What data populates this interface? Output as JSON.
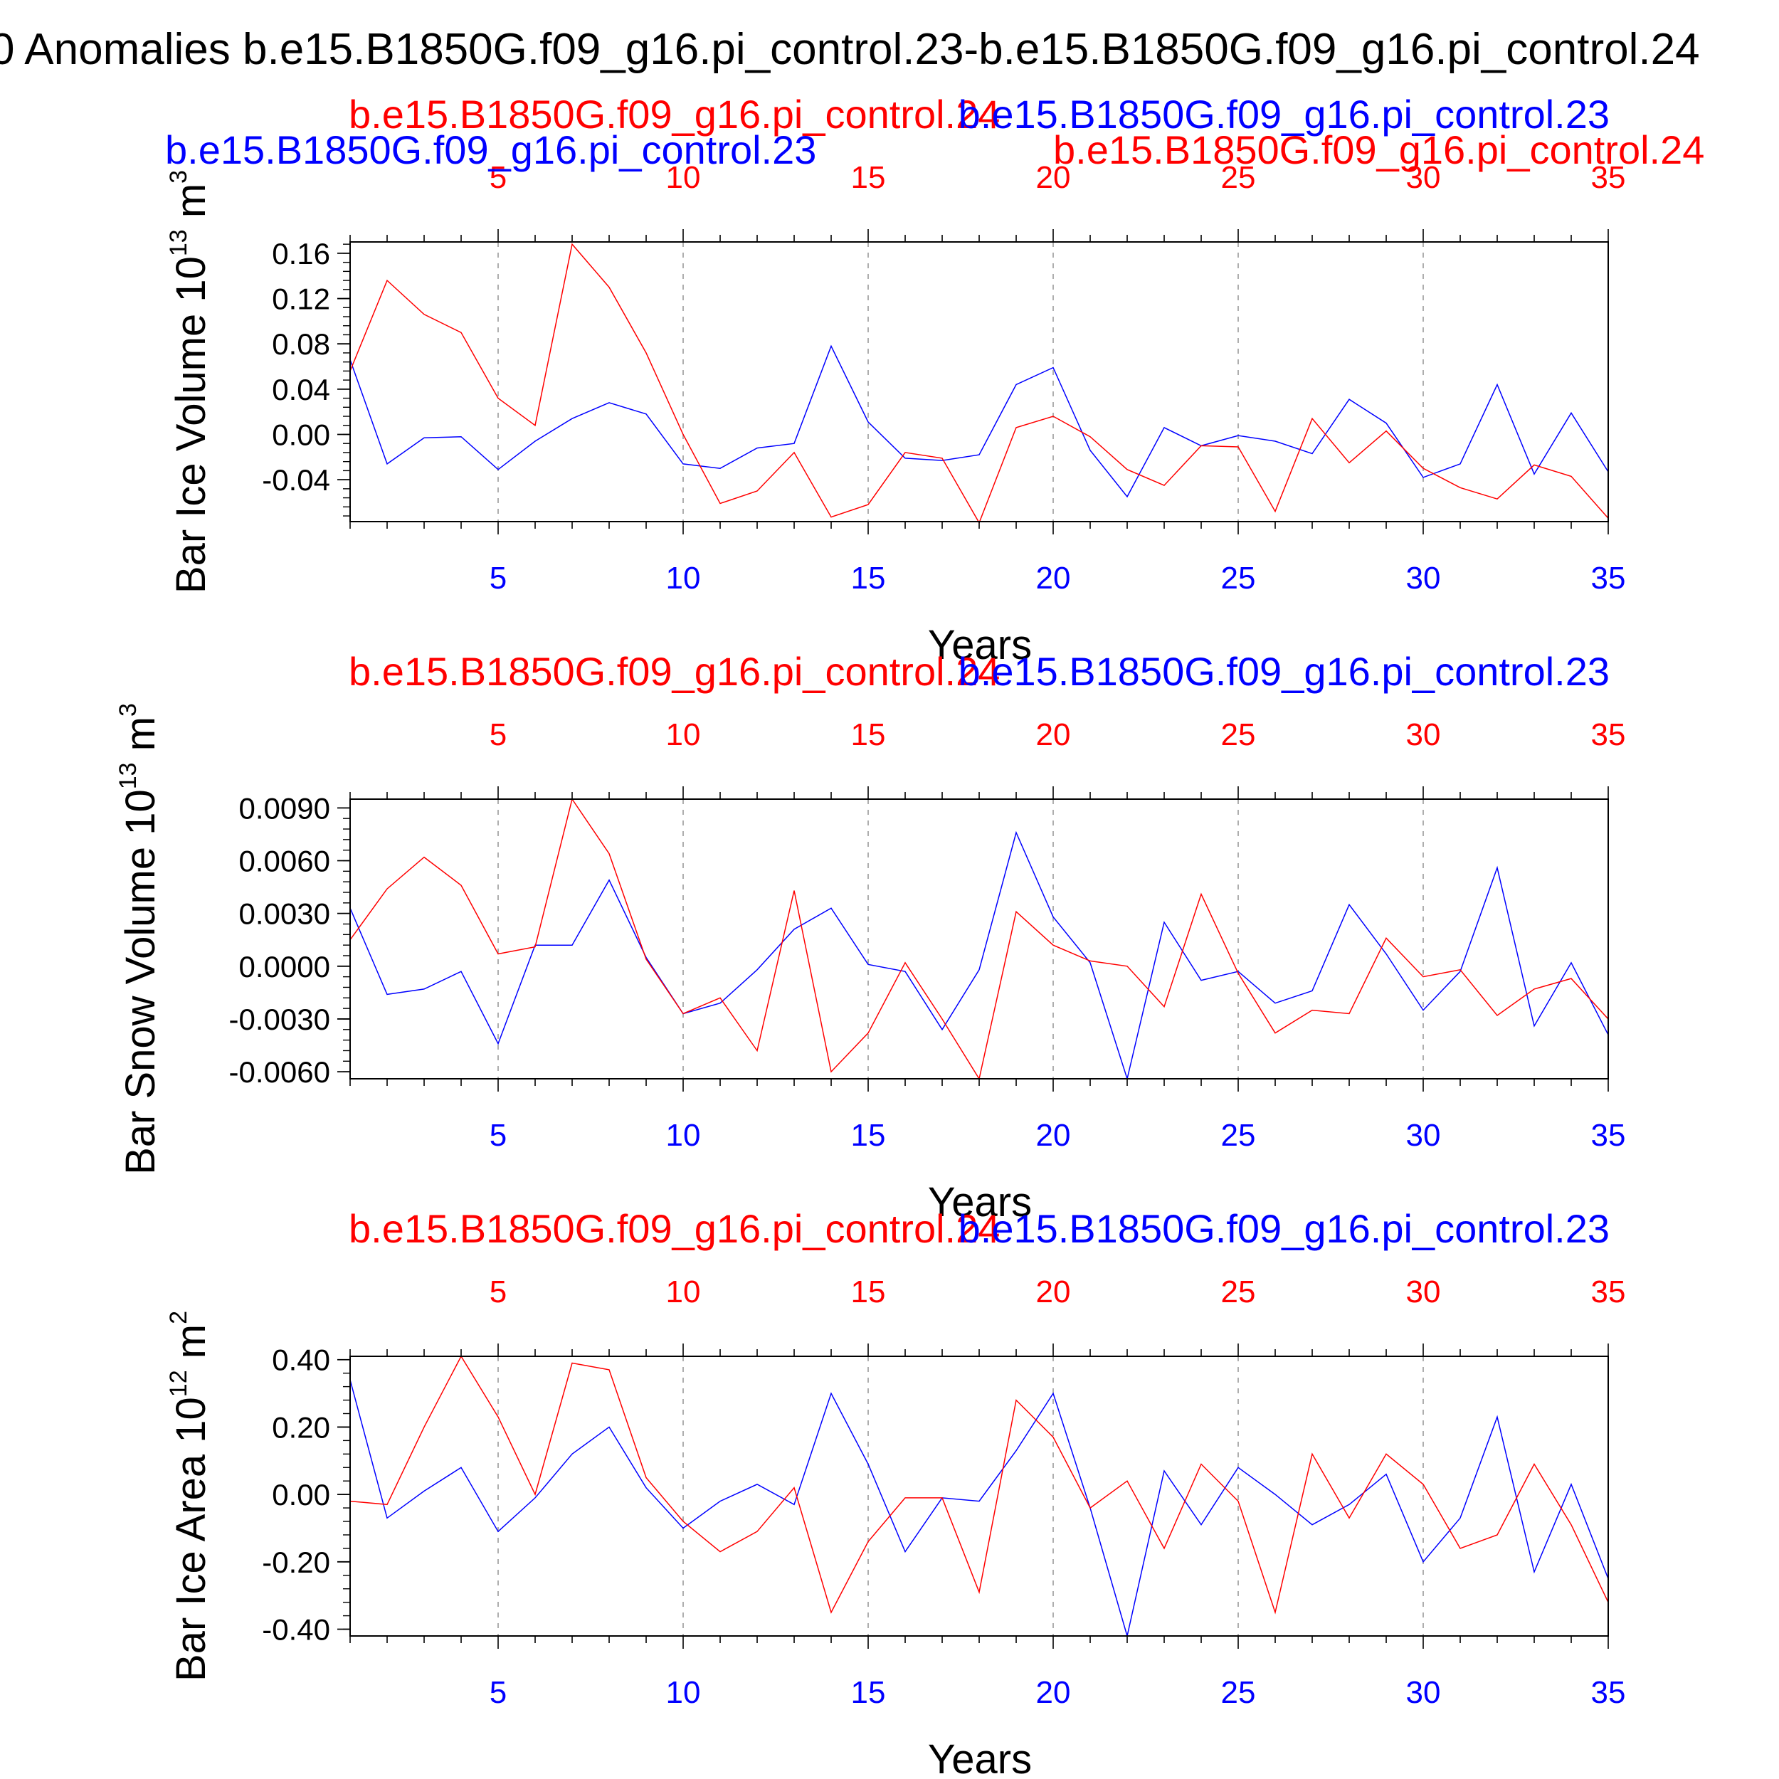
{
  "figure_title": "0 Anomalies b.e15.B1850G.f09_g16.pi_control.23-b.e15.B1850G.f09_g16.pi_control.24",
  "chart_data": [
    {
      "type": "line",
      "title": "",
      "ylabel_main": "Bar Ice Volume 10",
      "ylabel_exp": "13",
      "ylabel_unit": " m",
      "ylabel_unit_exp": "3",
      "xlabel": "Years",
      "xlim": [
        1,
        35
      ],
      "ylim": [
        -0.077,
        0.17
      ],
      "x_ticks": [
        5,
        10,
        15,
        20,
        25,
        30,
        35
      ],
      "y_ticks": [
        -0.04,
        0.0,
        0.04,
        0.08,
        0.12,
        0.16
      ],
      "y_tick_labels": [
        "-0.04",
        "0.00",
        "0.04",
        "0.08",
        "0.12",
        "0.16"
      ],
      "y_minor": 0.008,
      "grid": "dashed vertical at major x ticks",
      "series": [
        {
          "name": "b.e15.B1850G.f09_g16.pi_control.23",
          "color": "#0000ff",
          "values": [
            0.066,
            -0.026,
            -0.003,
            -0.002,
            -0.031,
            -0.006,
            0.014,
            0.028,
            0.018,
            -0.026,
            -0.03,
            -0.012,
            -0.008,
            0.078,
            0.011,
            -0.021,
            -0.023,
            -0.018,
            0.044,
            0.059,
            -0.014,
            -0.055,
            0.006,
            -0.01,
            -0.001,
            -0.006,
            -0.017,
            0.031,
            0.01,
            -0.038,
            -0.026,
            0.044,
            -0.035,
            0.019,
            -0.033
          ]
        },
        {
          "name": "b.e15.B1850G.f09_g16.pi_control.24",
          "color": "#ff0000",
          "values": [
            0.056,
            0.136,
            0.106,
            0.09,
            0.032,
            0.008,
            0.168,
            0.13,
            0.072,
            0.0,
            -0.061,
            -0.05,
            -0.016,
            -0.073,
            -0.062,
            -0.016,
            -0.021,
            -0.078,
            0.006,
            0.016,
            -0.002,
            -0.031,
            -0.045,
            -0.01,
            -0.011,
            -0.068,
            0.014,
            -0.025,
            0.003,
            -0.03,
            -0.047,
            -0.057,
            -0.027,
            -0.037,
            -0.074
          ]
        }
      ]
    },
    {
      "type": "line",
      "title": "",
      "ylabel_main": "Bar Snow Volume 10",
      "ylabel_exp": "13",
      "ylabel_unit": " m",
      "ylabel_unit_exp": "3",
      "xlabel": "Years",
      "xlim": [
        1,
        35
      ],
      "ylim": [
        -0.0064,
        0.0095
      ],
      "x_ticks": [
        5,
        10,
        15,
        20,
        25,
        30,
        35
      ],
      "y_ticks": [
        -0.006,
        -0.003,
        0.0,
        0.003,
        0.006,
        0.009
      ],
      "y_tick_labels": [
        "-0.0060",
        "-0.0030",
        "0.0000",
        "0.0030",
        "0.0060",
        "0.0090"
      ],
      "y_minor": 0.0006,
      "grid": "dashed vertical at major x ticks",
      "series": [
        {
          "name": "b.e15.B1850G.f09_g16.pi_control.23",
          "color": "#0000ff",
          "values": [
            0.0033,
            -0.0016,
            -0.0013,
            -0.0003,
            -0.0044,
            0.0012,
            0.0012,
            0.0049,
            0.0005,
            -0.0027,
            -0.0021,
            -0.0002,
            0.0021,
            0.0033,
            0.0001,
            -0.0003,
            -0.0036,
            -0.0002,
            0.0076,
            0.0028,
            0.0002,
            -0.0064,
            0.0025,
            -0.0008,
            -0.0003,
            -0.0021,
            -0.0014,
            0.0035,
            0.0007,
            -0.0025,
            -0.0003,
            0.0056,
            -0.0034,
            0.0002,
            -0.0039
          ]
        },
        {
          "name": "b.e15.B1850G.f09_g16.pi_control.24",
          "color": "#ff0000",
          "values": [
            0.0015,
            0.0044,
            0.0062,
            0.0046,
            0.0007,
            0.0011,
            0.0095,
            0.0064,
            0.0004,
            -0.0027,
            -0.0018,
            -0.0048,
            0.0043,
            -0.006,
            -0.0038,
            0.0002,
            -0.003,
            -0.0064,
            0.0031,
            0.0012,
            0.0003,
            0.0,
            -0.0023,
            0.0041,
            -0.0004,
            -0.0038,
            -0.0025,
            -0.0027,
            0.0016,
            -0.0006,
            -0.0002,
            -0.0028,
            -0.0013,
            -0.0007,
            -0.003
          ]
        }
      ]
    },
    {
      "type": "line",
      "title": "",
      "ylabel_main": "Bar Ice Area 10",
      "ylabel_exp": "12",
      "ylabel_unit": " m",
      "ylabel_unit_exp": "2",
      "xlabel": "Years",
      "xlim": [
        1,
        35
      ],
      "ylim": [
        -0.42,
        0.41
      ],
      "x_ticks": [
        5,
        10,
        15,
        20,
        25,
        30,
        35
      ],
      "y_ticks": [
        -0.4,
        -0.2,
        0.0,
        0.2,
        0.4
      ],
      "y_tick_labels": [
        "-0.40",
        "-0.20",
        "0.00",
        "0.20",
        "0.40"
      ],
      "y_minor": 0.04,
      "grid": "dashed vertical at major x ticks",
      "series": [
        {
          "name": "b.e15.B1850G.f09_g16.pi_control.23",
          "color": "#0000ff",
          "values": [
            0.34,
            -0.07,
            0.01,
            0.08,
            -0.11,
            -0.01,
            0.12,
            0.2,
            0.02,
            -0.1,
            -0.02,
            0.03,
            -0.03,
            0.3,
            0.09,
            -0.17,
            -0.01,
            -0.02,
            0.13,
            0.3,
            -0.04,
            -0.42,
            0.07,
            -0.09,
            0.08,
            0.0,
            -0.09,
            -0.03,
            0.06,
            -0.2,
            -0.07,
            0.23,
            -0.23,
            0.03,
            -0.25
          ]
        },
        {
          "name": "b.e15.B1850G.f09_g16.pi_control.24",
          "color": "#ff0000",
          "values": [
            -0.02,
            -0.03,
            0.2,
            0.41,
            0.23,
            0.0,
            0.39,
            0.37,
            0.05,
            -0.08,
            -0.17,
            -0.11,
            0.02,
            -0.35,
            -0.14,
            -0.01,
            -0.01,
            -0.29,
            0.28,
            0.17,
            -0.04,
            0.04,
            -0.16,
            0.09,
            -0.02,
            -0.35,
            0.12,
            -0.07,
            0.12,
            0.03,
            -0.16,
            -0.12,
            0.09,
            -0.09,
            -0.32
          ]
        }
      ]
    }
  ]
}
